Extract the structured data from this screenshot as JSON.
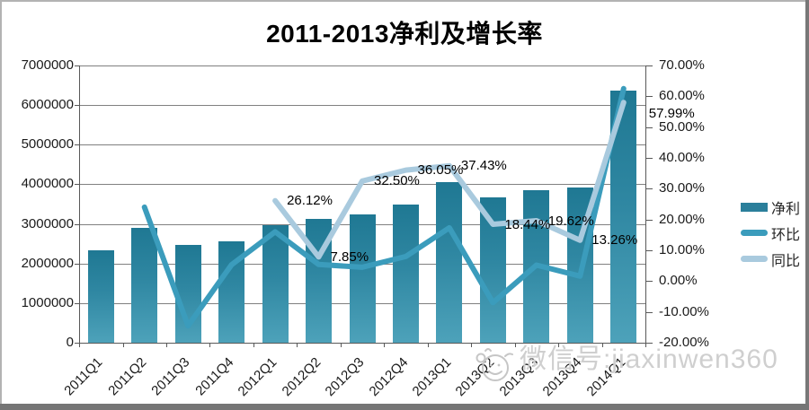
{
  "page": {
    "title": "2011-2013净利及增长率"
  },
  "watermark": {
    "label": "微信号:jiaxinwen360",
    "icon": "monkey-face-icon",
    "color": "#cfcfcf"
  },
  "legend": {
    "position": "right",
    "items": [
      {
        "label": "净利",
        "swatch": "bar",
        "color": "#2b7f9b"
      },
      {
        "label": "环比",
        "swatch": "line",
        "color": "#3b9cbc"
      },
      {
        "label": "同比",
        "swatch": "line",
        "color": "#a9cade"
      }
    ]
  },
  "chart_data": {
    "type": "combo-bar-line",
    "title": "2011-2013净利及增长率",
    "categories": [
      "2011Q1",
      "2011Q2",
      "2011Q3",
      "2011Q4",
      "2012Q1",
      "2012Q2",
      "2012Q3",
      "2012Q4",
      "2013Q1",
      "2013Q2",
      "2013Q3",
      "2013Q4",
      "2014Q1"
    ],
    "left_axis": {
      "min": 0,
      "max": 7000000,
      "step": 1000000,
      "tick_labels": [
        "0",
        "1000000",
        "2000000",
        "3000000",
        "4000000",
        "5000000",
        "6000000",
        "7000000"
      ]
    },
    "right_axis": {
      "min": -20,
      "max": 70,
      "step": 10,
      "tick_labels": [
        "-20.00%",
        "-10.00%",
        "0.00%",
        "10.00%",
        "20.00%",
        "30.00%",
        "40.00%",
        "50.00%",
        "60.00%",
        "70.00%"
      ]
    },
    "series": [
      {
        "name": "净利",
        "type": "bar",
        "axis": "left",
        "color": "#2b7f9b",
        "values": [
          2330000,
          2890000,
          2470000,
          2560000,
          2970000,
          3130000,
          3240000,
          3500000,
          4060000,
          3670000,
          3860000,
          3920000,
          6370000
        ]
      },
      {
        "name": "环比",
        "type": "line",
        "axis": "right",
        "color": "#3b9cbc",
        "labels_shown": false,
        "values": [
          null,
          24.0,
          -14.5,
          5.3,
          16.0,
          5.4,
          4.5,
          8.0,
          17.3,
          -7.0,
          5.2,
          1.6,
          62.5
        ]
      },
      {
        "name": "同比",
        "type": "line",
        "axis": "right",
        "color": "#a9cade",
        "labels_shown": true,
        "values": [
          null,
          null,
          null,
          null,
          26.12,
          7.85,
          32.5,
          36.05,
          37.43,
          18.44,
          19.62,
          13.26,
          57.99
        ],
        "data_labels": [
          "26.12%",
          "7.85%",
          "32.50%",
          "36.05%",
          "37.43%",
          "18.44%",
          "19.62%",
          "13.26%",
          "57.99%"
        ]
      }
    ],
    "grid": true,
    "legend_position": "right"
  }
}
